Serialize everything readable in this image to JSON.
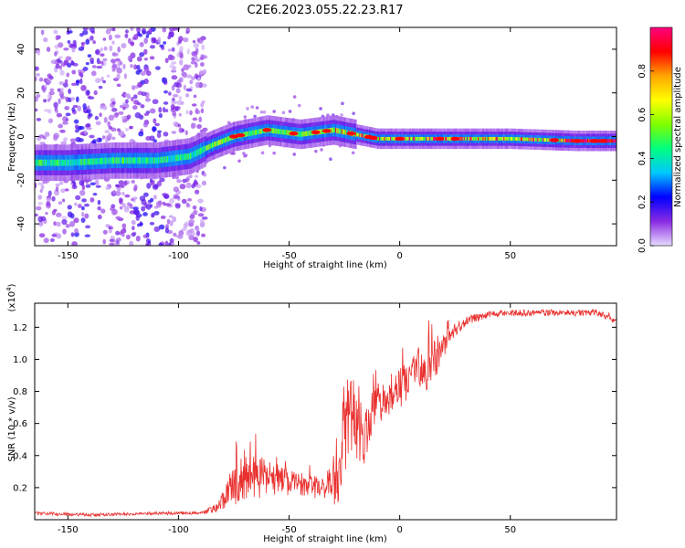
{
  "figure_title": "C2E6.2023.055.22.23.R17",
  "chart_data": [
    {
      "type": "heatmap",
      "title": "C2E6.2023.055.22.23.R17",
      "xlabel": "Height of straight line (km)",
      "ylabel": "Frequency (Hz)",
      "xlim": [
        -165,
        98
      ],
      "ylim": [
        -50,
        50
      ],
      "xticks": [
        -150,
        -100,
        -50,
        0,
        50
      ],
      "yticks": [
        -40,
        -20,
        0,
        20,
        40
      ],
      "xtick_labels": [
        "-150",
        "-100",
        "-50",
        "0",
        "50"
      ],
      "ytick_labels": [
        "-40",
        "-20",
        "0",
        "20",
        "40"
      ],
      "colorbar": {
        "label": "Normalized spectral amplitude",
        "range": [
          0,
          1
        ],
        "ticks": [
          0.0,
          0.2,
          0.4,
          0.6,
          0.8
        ],
        "tick_labels": [
          "0.0",
          "0.2",
          "0.4",
          "0.6",
          "0.8"
        ],
        "colors": [
          "#e8dcff",
          "#8a2be2",
          "#0000ff",
          "#00c8ff",
          "#00ff80",
          "#7fff00",
          "#ffff00",
          "#ffa500",
          "#ff0000",
          "#ff0080"
        ]
      },
      "ridge": [
        {
          "x": -165,
          "y": -12
        },
        {
          "x": -150,
          "y": -12
        },
        {
          "x": -130,
          "y": -11
        },
        {
          "x": -110,
          "y": -11
        },
        {
          "x": -95,
          "y": -9
        },
        {
          "x": -85,
          "y": -4
        },
        {
          "x": -75,
          "y": 0
        },
        {
          "x": -60,
          "y": 3
        },
        {
          "x": -45,
          "y": 1
        },
        {
          "x": -30,
          "y": 3
        },
        {
          "x": -20,
          "y": 1
        },
        {
          "x": -10,
          "y": -1
        },
        {
          "x": 0,
          "y": -1
        },
        {
          "x": 20,
          "y": -1
        },
        {
          "x": 50,
          "y": -1
        },
        {
          "x": 80,
          "y": -2
        },
        {
          "x": 98,
          "y": -2
        }
      ]
    },
    {
      "type": "line",
      "xlabel": "Height of straight line (km)",
      "ylabel": "SNR (10 * v/v)",
      "y_multiplier": "(x10",
      "y_multiplier_exp": "4",
      "xlim": [
        -165,
        98
      ],
      "ylim": [
        0,
        1.35
      ],
      "xticks": [
        -150,
        -100,
        -50,
        0,
        50
      ],
      "yticks": [
        0.2,
        0.4,
        0.6,
        0.8,
        1.0,
        1.2
      ],
      "xtick_labels": [
        "-150",
        "-100",
        "-50",
        "0",
        "50"
      ],
      "ytick_labels": [
        "0.2",
        "0.4",
        "0.6",
        "0.8",
        "1.0",
        "1.2"
      ],
      "series": [
        {
          "name": "SNR",
          "color": "#e8302e",
          "x": [
            -165,
            -140,
            -110,
            -90,
            -82,
            -76,
            -70,
            -62,
            -55,
            -50,
            -44,
            -38,
            -32,
            -28,
            -25,
            -23,
            -21,
            -19,
            -17,
            -15,
            -12,
            -8,
            -4,
            0,
            6,
            12,
            17,
            22,
            30,
            40,
            50,
            70,
            90,
            98
          ],
          "y": [
            0.04,
            0.03,
            0.04,
            0.04,
            0.08,
            0.2,
            0.28,
            0.27,
            0.25,
            0.24,
            0.22,
            0.2,
            0.22,
            0.25,
            0.45,
            0.7,
            0.65,
            0.55,
            0.5,
            0.55,
            0.7,
            0.72,
            0.75,
            0.82,
            0.9,
            0.95,
            1.0,
            1.15,
            1.24,
            1.28,
            1.29,
            1.29,
            1.29,
            1.25
          ],
          "noise": [
            0.01,
            0.01,
            0.01,
            0.01,
            0.03,
            0.12,
            0.15,
            0.12,
            0.1,
            0.08,
            0.07,
            0.08,
            0.1,
            0.15,
            0.3,
            0.3,
            0.25,
            0.2,
            0.15,
            0.15,
            0.12,
            0.1,
            0.1,
            0.12,
            0.14,
            0.15,
            0.12,
            0.05,
            0.03,
            0.02,
            0.02,
            0.02,
            0.02,
            0.03
          ]
        }
      ]
    }
  ]
}
